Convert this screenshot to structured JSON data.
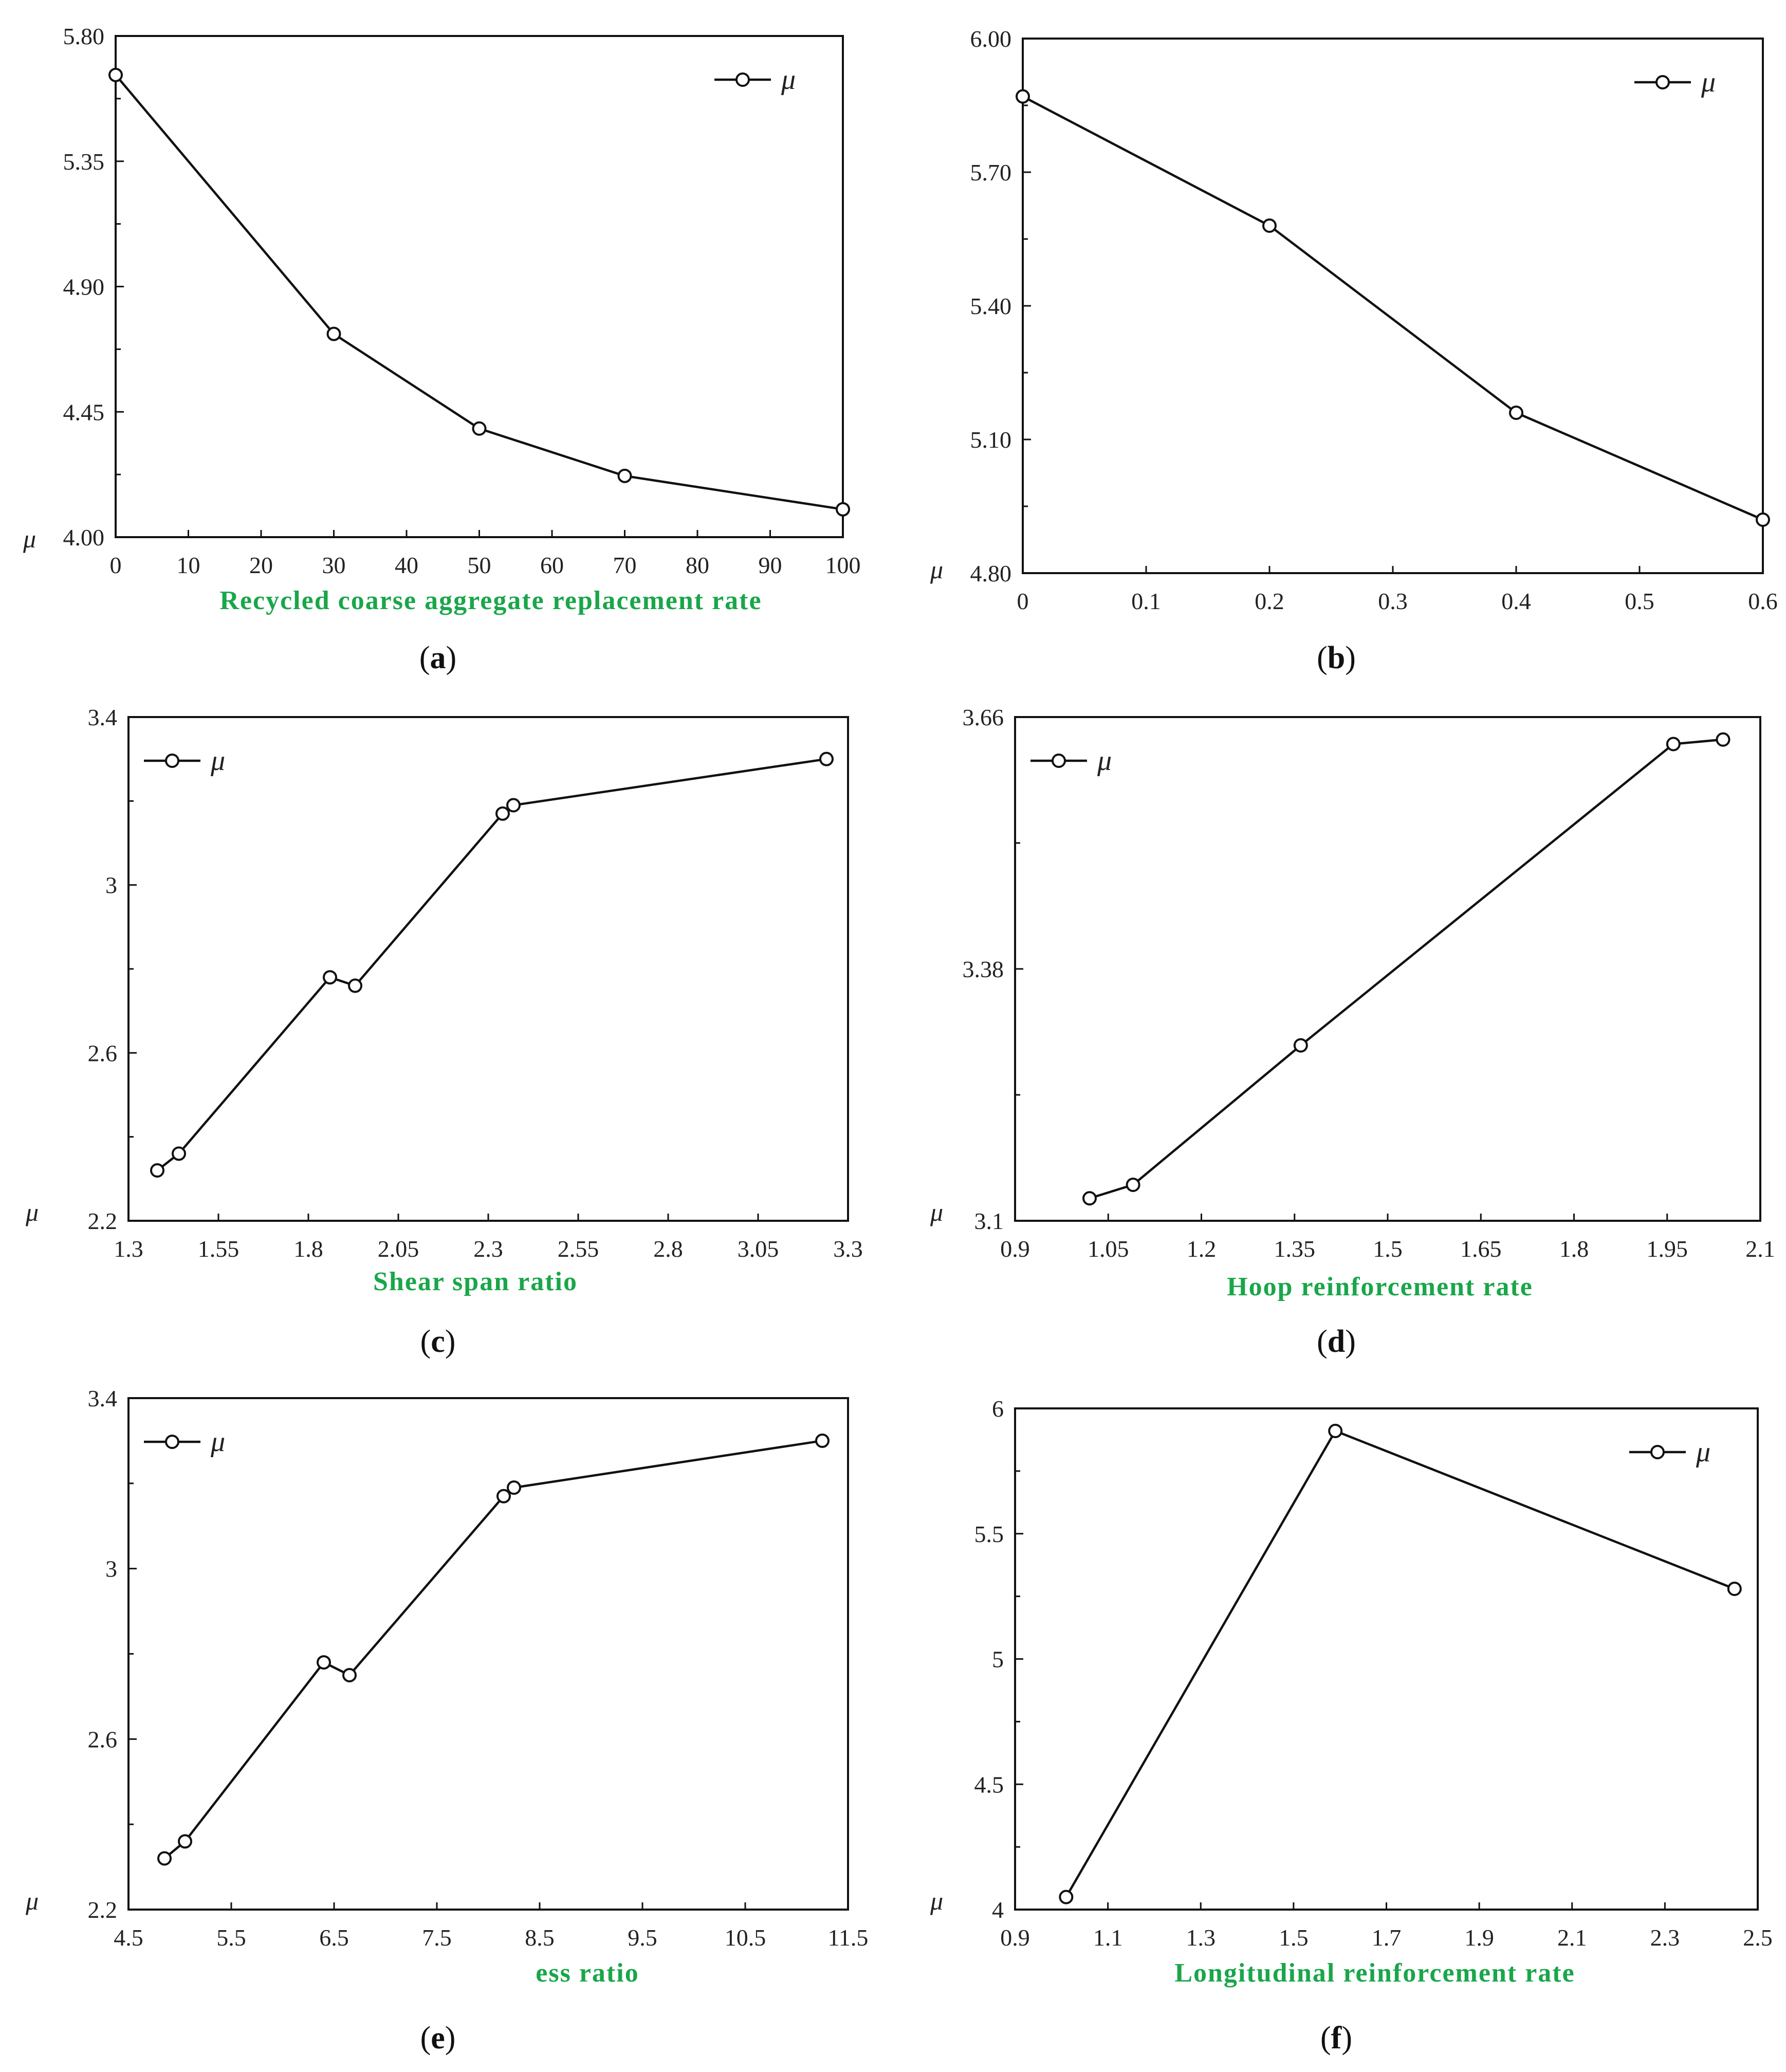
{
  "colors": {
    "axis_label": "#1aa64a",
    "line": "#111111",
    "frame": "#111111"
  },
  "chart_data": [
    {
      "type": "line",
      "panel": "a",
      "caption_letter": "a",
      "xlabel": "Recycled coarse aggregate replacement rate",
      "ylabel_symbol": "μ",
      "legend": "μ",
      "legend_placement": "top-right",
      "xlim": [
        0,
        100
      ],
      "ylim": [
        4.0,
        5.8
      ],
      "xticks": [
        0,
        10,
        20,
        30,
        40,
        50,
        60,
        70,
        80,
        90,
        100
      ],
      "xtick_labels": [
        "0",
        "10",
        "20",
        "30",
        "40",
        "50",
        "60",
        "70",
        "80",
        "90",
        "100"
      ],
      "yticks": [
        4.0,
        4.45,
        4.9,
        5.35,
        5.8
      ],
      "ytick_labels": [
        "4.00",
        "4.45",
        "4.90",
        "5.35",
        "5.80"
      ],
      "series": [
        {
          "name": "μ",
          "x": [
            0,
            30,
            50,
            70,
            100
          ],
          "y": [
            5.66,
            4.73,
            4.39,
            4.22,
            4.1
          ]
        }
      ]
    },
    {
      "type": "line",
      "panel": "b",
      "caption_letter": "b",
      "xlabel": "",
      "ylabel_symbol": "μ",
      "legend": "μ",
      "legend_placement": "top-right",
      "xlim": [
        0,
        0.6
      ],
      "ylim": [
        4.8,
        6.0
      ],
      "xticks": [
        0,
        0.1,
        0.2,
        0.3,
        0.4,
        0.5,
        0.6
      ],
      "xtick_labels": [
        "0",
        "0.1",
        "0.2",
        "0.3",
        "0.4",
        "0.5",
        "0.6"
      ],
      "yticks": [
        4.8,
        5.1,
        5.4,
        5.7,
        6.0
      ],
      "ytick_labels": [
        "4.80",
        "5.10",
        "5.40",
        "5.70",
        "6.00"
      ],
      "series": [
        {
          "name": "μ",
          "x": [
            0,
            0.2,
            0.4,
            0.6
          ],
          "y": [
            5.87,
            5.58,
            5.16,
            4.92
          ]
        }
      ]
    },
    {
      "type": "line",
      "panel": "c",
      "caption_letter": "c",
      "xlabel": "Shear span ratio",
      "ylabel_symbol": "μ",
      "legend": "μ",
      "legend_placement": "top-left",
      "xlim": [
        1.3,
        3.3
      ],
      "ylim": [
        2.2,
        3.4
      ],
      "xticks": [
        1.3,
        1.55,
        1.8,
        2.05,
        2.3,
        2.55,
        2.8,
        3.05,
        3.3
      ],
      "xtick_labels": [
        "1.3",
        "1.55",
        "1.8",
        "2.05",
        "2.3",
        "2.55",
        "2.8",
        "3.05",
        "3.3"
      ],
      "yticks": [
        2.2,
        2.6,
        3.0,
        3.4
      ],
      "ytick_labels": [
        "2.2",
        "2.6",
        "3",
        "3.4"
      ],
      "series": [
        {
          "name": "μ",
          "x": [
            1.38,
            1.44,
            1.86,
            1.93,
            2.34,
            2.37,
            3.24
          ],
          "y": [
            2.32,
            2.36,
            2.78,
            2.76,
            3.17,
            3.19,
            3.3
          ]
        }
      ]
    },
    {
      "type": "line",
      "panel": "d",
      "caption_letter": "d",
      "xlabel": "Hoop reinforcement rate",
      "ylabel_symbol": "μ",
      "legend": "μ",
      "legend_placement": "top-left",
      "xlim": [
        0.9,
        2.1
      ],
      "ylim": [
        3.1,
        3.66
      ],
      "xticks": [
        0.9,
        1.05,
        1.2,
        1.35,
        1.5,
        1.65,
        1.8,
        1.95,
        2.1
      ],
      "xtick_labels": [
        "0.9",
        "1.05",
        "1.2",
        "1.35",
        "1.5",
        "1.65",
        "1.8",
        "1.95",
        "2.1"
      ],
      "yticks": [
        3.1,
        3.38,
        3.66
      ],
      "ytick_labels": [
        "3.1",
        "3.38",
        "3.66"
      ],
      "series": [
        {
          "name": "μ",
          "x": [
            1.02,
            1.09,
            1.36,
            1.96,
            2.04
          ],
          "y": [
            3.125,
            3.14,
            3.295,
            3.63,
            3.635
          ]
        }
      ]
    },
    {
      "type": "line",
      "panel": "e",
      "caption_letter": "e",
      "xlabel": "ess ratio",
      "ylabel_symbol": "μ",
      "legend": "μ",
      "legend_placement": "top-left",
      "xlim": [
        4.5,
        11.5
      ],
      "ylim": [
        2.2,
        3.4
      ],
      "xticks": [
        4.5,
        5.5,
        6.5,
        7.5,
        8.5,
        9.5,
        10.5,
        11.5
      ],
      "xtick_labels": [
        "4.5",
        "5.5",
        "6.5",
        "7.5",
        "8.5",
        "9.5",
        "10.5",
        "11.5"
      ],
      "yticks": [
        2.2,
        2.6,
        3.0,
        3.4
      ],
      "ytick_labels": [
        "2.2",
        "2.6",
        "3",
        "3.4"
      ],
      "series": [
        {
          "name": "μ",
          "x": [
            4.85,
            5.05,
            6.4,
            6.65,
            8.15,
            8.25,
            11.25
          ],
          "y": [
            2.32,
            2.36,
            2.78,
            2.75,
            3.17,
            3.19,
            3.3
          ]
        }
      ]
    },
    {
      "type": "line",
      "panel": "f",
      "caption_letter": "f",
      "xlabel": "Longitudinal reinforcement rate",
      "ylabel_symbol": "μ",
      "legend": "μ",
      "legend_placement": "top-right",
      "xlim": [
        0.9,
        2.5
      ],
      "ylim": [
        4.0,
        6.0
      ],
      "xticks": [
        0.9,
        1.1,
        1.3,
        1.5,
        1.7,
        1.9,
        2.1,
        2.3,
        2.5
      ],
      "xtick_labels": [
        "0.9",
        "1.1",
        "1.3",
        "1.5",
        "1.7",
        "1.9",
        "2.1",
        "2.3",
        "2.5"
      ],
      "yticks": [
        4.0,
        4.5,
        5.0,
        5.5,
        6.0
      ],
      "ytick_labels": [
        "4",
        "4.5",
        "5",
        "5.5",
        "6"
      ],
      "series": [
        {
          "name": "μ",
          "x": [
            1.01,
            1.59,
            2.45
          ],
          "y": [
            4.05,
            5.91,
            5.28
          ]
        }
      ]
    }
  ]
}
